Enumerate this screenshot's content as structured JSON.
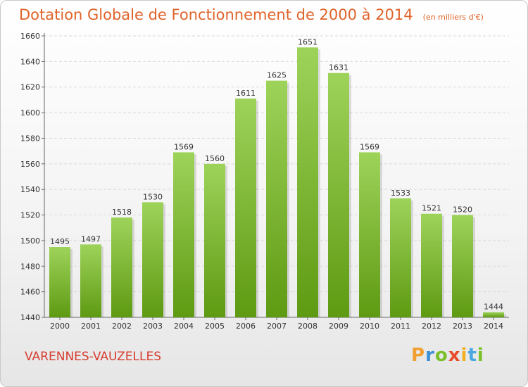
{
  "title": "Dotation Globale de Fonctionnement de 2000 à 2014",
  "unit_note": "(en milliers d'€)",
  "commune": "VARENNES-VAUZELLES",
  "brand": {
    "letters": [
      "P",
      "r",
      "o",
      "x",
      "i",
      "t",
      "i"
    ],
    "colors": [
      "#f0a030",
      "#3a8fd8",
      "#7bbf2a",
      "#e84d2a",
      "#f0b020",
      "#4aa8e0",
      "#7bbf2a"
    ]
  },
  "colors": {
    "title": "#e0632a",
    "commune": "#d63c2e",
    "bar_top": "#9ed35a",
    "bar_bottom": "#5e9a12",
    "grid": "#d9d9d9",
    "axis": "#666666"
  },
  "chart_data": {
    "type": "bar",
    "categories": [
      "2000",
      "2001",
      "2002",
      "2003",
      "2004",
      "2005",
      "2006",
      "2007",
      "2008",
      "2009",
      "2010",
      "2011",
      "2012",
      "2013",
      "2014"
    ],
    "values": [
      1495,
      1497,
      1518,
      1530,
      1569,
      1560,
      1611,
      1625,
      1651,
      1631,
      1569,
      1533,
      1521,
      1520,
      1444
    ],
    "ylim": [
      1440,
      1660
    ],
    "yticks": [
      1440,
      1460,
      1480,
      1500,
      1520,
      1540,
      1560,
      1580,
      1600,
      1620,
      1640,
      1660
    ],
    "grid": true,
    "xlabel": "",
    "ylabel": ""
  }
}
